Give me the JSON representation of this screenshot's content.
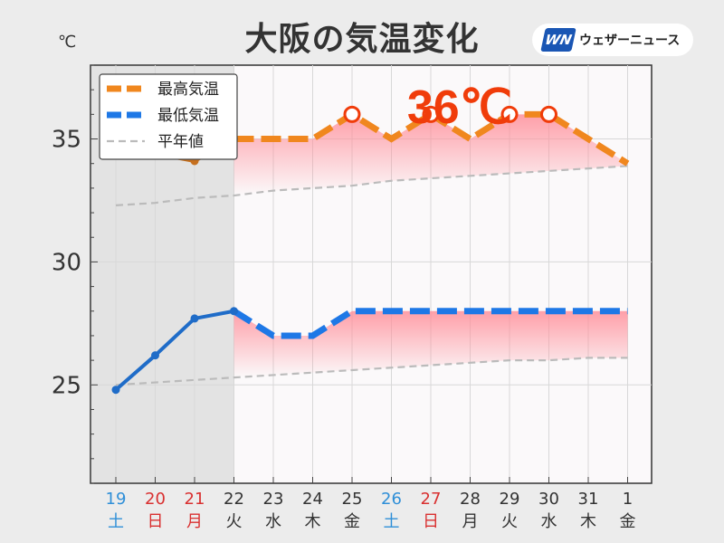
{
  "title": "大阪の気温変化",
  "logo": {
    "mark": "WN",
    "text": "ウェザーニュース"
  },
  "unit": "℃",
  "highlight": "36℃",
  "colors": {
    "high": "#f0871e",
    "high_past": "#c6701e",
    "low": "#1e78e6",
    "low_past": "#1f6cc8",
    "normal": "#bbbbbb",
    "saturday": "#2f8fd8",
    "holiday": "#d93030",
    "weekday": "#333333",
    "highlight": "#f03c0a",
    "band": "#ff8f9a"
  },
  "legend": [
    {
      "label": "最高気温",
      "key": "high",
      "style": "dashed-thick"
    },
    {
      "label": "最低気温",
      "key": "low",
      "style": "dashed-thick"
    },
    {
      "label": "平年値",
      "key": "normal",
      "style": "dashed-thin"
    }
  ],
  "chart_data": {
    "type": "line",
    "ylim": [
      21,
      38
    ],
    "yticks": [
      25,
      30,
      35
    ],
    "grid": true,
    "legend_position": "top-left",
    "past_days": 4,
    "categories": [
      {
        "date": "19",
        "dow": "土",
        "kind": "saturday"
      },
      {
        "date": "20",
        "dow": "日",
        "kind": "holiday"
      },
      {
        "date": "21",
        "dow": "月",
        "kind": "holiday"
      },
      {
        "date": "22",
        "dow": "火",
        "kind": "weekday"
      },
      {
        "date": "23",
        "dow": "水",
        "kind": "weekday"
      },
      {
        "date": "24",
        "dow": "木",
        "kind": "weekday"
      },
      {
        "date": "25",
        "dow": "金",
        "kind": "weekday"
      },
      {
        "date": "26",
        "dow": "土",
        "kind": "saturday"
      },
      {
        "date": "27",
        "dow": "日",
        "kind": "holiday"
      },
      {
        "date": "28",
        "dow": "月",
        "kind": "weekday"
      },
      {
        "date": "29",
        "dow": "火",
        "kind": "weekday"
      },
      {
        "date": "30",
        "dow": "水",
        "kind": "weekday"
      },
      {
        "date": "31",
        "dow": "木",
        "kind": "weekday"
      },
      {
        "date": "1",
        "dow": "金",
        "kind": "weekday"
      }
    ],
    "series": [
      {
        "name": "最高気温",
        "key": "high",
        "values": [
          34.9,
          34.4,
          34.1,
          35,
          35,
          35,
          36,
          35,
          36,
          35,
          36,
          36,
          35,
          34
        ],
        "markers": [
          6,
          8,
          10,
          11
        ]
      },
      {
        "name": "最低気温",
        "key": "low",
        "values": [
          24.8,
          26.2,
          27.7,
          28,
          27,
          27,
          28,
          28,
          28,
          28,
          28,
          28,
          28,
          28
        ]
      },
      {
        "name": "平年値",
        "key": "normal",
        "values_high": [
          32.3,
          32.4,
          32.6,
          32.7,
          32.9,
          33.0,
          33.1,
          33.3,
          33.4,
          33.5,
          33.6,
          33.7,
          33.8,
          33.9
        ],
        "values_low": [
          25.0,
          25.1,
          25.2,
          25.3,
          25.4,
          25.5,
          25.6,
          25.7,
          25.8,
          25.9,
          26.0,
          26.0,
          26.1,
          26.1
        ]
      }
    ]
  }
}
